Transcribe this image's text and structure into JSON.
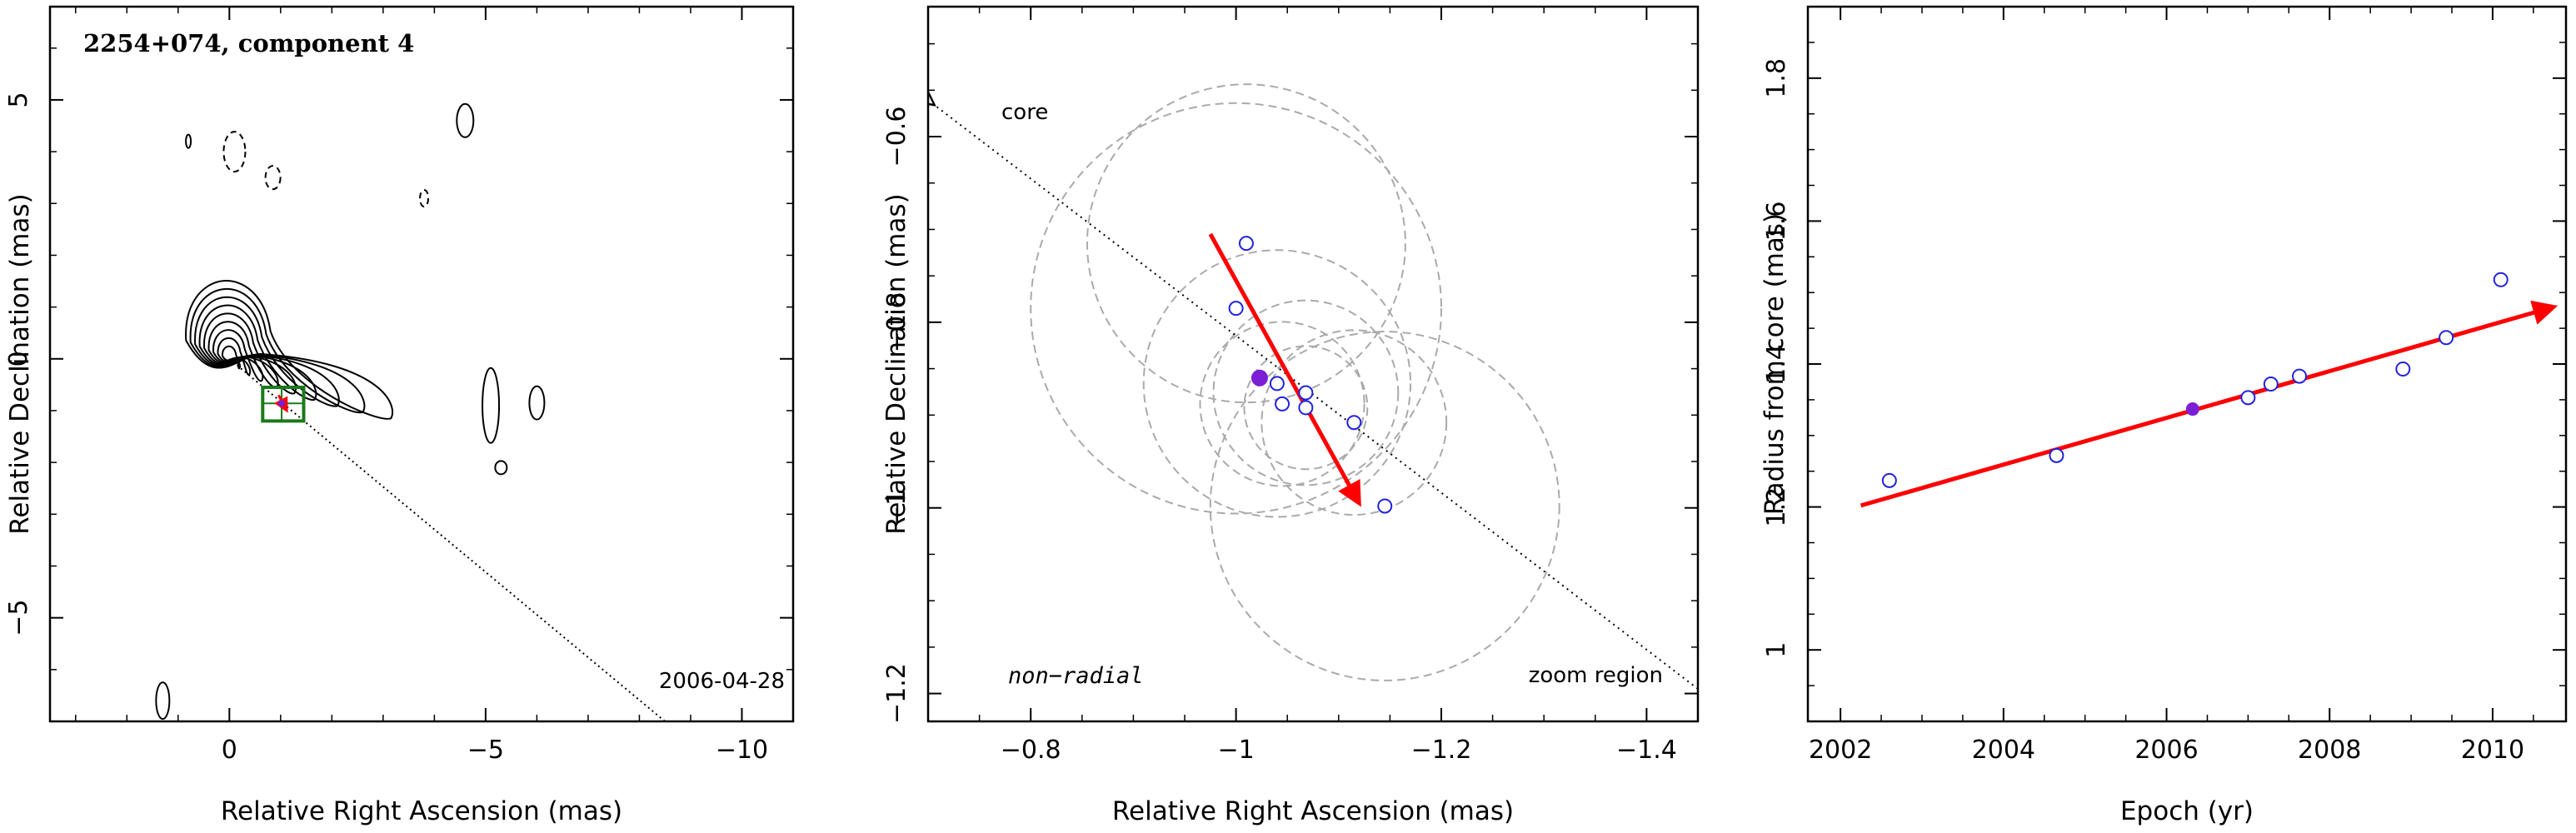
{
  "chart_data": [
    {
      "type": "contour",
      "title": "2254+074, component 4",
      "xlabel": "Relative Right Ascension (mas)",
      "ylabel": "Relative Declination (mas)",
      "xlim": [
        3.5,
        -11.0
      ],
      "ylim": [
        -7.0,
        6.8
      ],
      "xticks": [
        0,
        -5,
        -10
      ],
      "xtick_labels": [
        "0",
        "−5",
        "−10"
      ],
      "yticks": [
        -5,
        0,
        5
      ],
      "ytick_labels": [
        "−5",
        "0",
        "5"
      ],
      "epoch_label": "2006-04-28",
      "core_position": [
        0,
        0
      ],
      "component_position": [
        -1.02,
        -0.86
      ],
      "contour_levels": 9,
      "direction_line": {
        "from": [
          0,
          0
        ],
        "to": [
          -8.5,
          -7.0
        ]
      },
      "zoom_box": {
        "x": [
          -0.65,
          -1.45
        ],
        "y": [
          -0.55,
          -1.2
        ]
      },
      "colors": {
        "zoom_box": "#1a7a1a",
        "arrow": "#ff0000",
        "marker": "#7a1fd6"
      }
    },
    {
      "type": "scatter",
      "title": "",
      "xlabel": "Relative Right Ascension (mas)",
      "ylabel": "Relative Declination (mas)",
      "xlim": [
        -0.7,
        -1.45
      ],
      "ylim": [
        -1.23,
        -0.46
      ],
      "xticks": [
        -0.8,
        -1.0,
        -1.2,
        -1.4
      ],
      "xtick_labels": [
        "−0.8",
        "−1",
        "−1.2",
        "−1.4"
      ],
      "yticks": [
        -1.2,
        -1.0,
        -0.8,
        -0.6
      ],
      "ytick_labels": [
        "−1.2",
        "−1",
        "−0.8",
        "−0.6"
      ],
      "core_label": "core",
      "motion_label": "non−radial",
      "region_label": "zoom region",
      "points": [
        {
          "x": -1.01,
          "y": -0.715
        },
        {
          "x": -1.0,
          "y": -0.785
        },
        {
          "x": -1.04,
          "y": -0.866
        },
        {
          "x": -1.045,
          "y": -0.888
        },
        {
          "x": -1.068,
          "y": -0.876
        },
        {
          "x": -1.068,
          "y": -0.892
        },
        {
          "x": -1.115,
          "y": -0.908
        },
        {
          "x": -1.145,
          "y": -0.998
        }
      ],
      "reference_point": {
        "x": -1.023,
        "y": -0.86
      },
      "circles": [
        {
          "x": -1.01,
          "y": -0.715,
          "r": 0.155
        },
        {
          "x": -1.0,
          "y": -0.785,
          "r": 0.2
        },
        {
          "x": -1.04,
          "y": -0.866,
          "r": 0.13
        },
        {
          "x": -1.045,
          "y": -0.888,
          "r": 0.08
        },
        {
          "x": -1.068,
          "y": -0.876,
          "r": 0.09
        },
        {
          "x": -1.068,
          "y": -0.892,
          "r": 0.06
        },
        {
          "x": -1.115,
          "y": -0.908,
          "r": 0.09
        },
        {
          "x": -1.145,
          "y": -0.998,
          "r": 0.17
        }
      ],
      "arrow": {
        "from": [
          -0.975,
          -0.705
        ],
        "to": [
          -1.12,
          -0.995
        ]
      },
      "direction_line": {
        "from": [
          -0.705,
          -0.565
        ],
        "to": [
          -1.45,
          -1.195
        ]
      },
      "colors": {
        "points": "#2222dd",
        "reference": "#7a1fd6",
        "arrow": "#ff0000",
        "circles": "#aaaaaa"
      }
    },
    {
      "type": "scatter",
      "title": "",
      "xlabel": "Epoch (yr)",
      "ylabel": "Radius from core (mas)",
      "xlim": [
        2001.6,
        2010.9
      ],
      "ylim": [
        0.9,
        1.9
      ],
      "xticks": [
        2002,
        2004,
        2006,
        2008,
        2010
      ],
      "xtick_labels": [
        "2002",
        "2004",
        "2006",
        "2008",
        "2010"
      ],
      "yticks": [
        1.0,
        1.2,
        1.4,
        1.6,
        1.8
      ],
      "ytick_labels": [
        "1",
        "1.2",
        "1.4",
        "1.6",
        "1.8"
      ],
      "points": [
        {
          "x": 2002.6,
          "y": 1.237
        },
        {
          "x": 2004.65,
          "y": 1.272
        },
        {
          "x": 2007.0,
          "y": 1.353
        },
        {
          "x": 2007.28,
          "y": 1.372
        },
        {
          "x": 2007.63,
          "y": 1.383
        },
        {
          "x": 2008.9,
          "y": 1.393
        },
        {
          "x": 2009.43,
          "y": 1.437
        },
        {
          "x": 2010.1,
          "y": 1.518
        }
      ],
      "reference_point": {
        "x": 2006.32,
        "y": 1.337
      },
      "fit_line": {
        "from": [
          2002.25,
          1.202
        ],
        "to": [
          2010.75,
          1.48
        ]
      },
      "colors": {
        "points": "#2222dd",
        "reference": "#7a1fd6",
        "fit": "#ff0000"
      }
    }
  ]
}
